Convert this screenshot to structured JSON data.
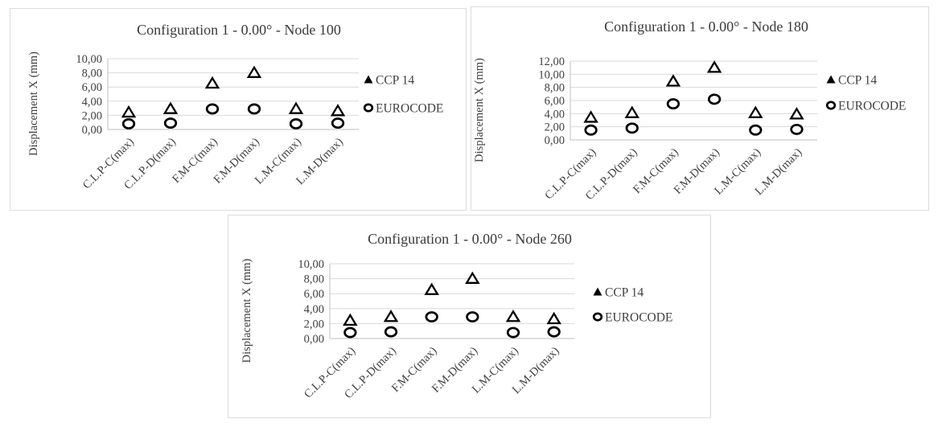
{
  "colors": {
    "background": "#ffffff",
    "panel_border": "#dcdcdc",
    "gridline": "#d9d9d9",
    "axis_line": "#bfbfbf",
    "text": "#404040",
    "marker": "#000000"
  },
  "legend": {
    "items": [
      {
        "label": "CCP 14",
        "marker": "triangle-icon"
      },
      {
        "label": "EUROCODE",
        "marker": "circle-icon"
      }
    ]
  },
  "chart_data": [
    {
      "type": "scatter",
      "title": "Configuration 1 - 0.00° - Node 100",
      "xlabel": "",
      "ylabel": "Displacement X (mm)",
      "ylim": [
        0,
        10
      ],
      "ystep": 2,
      "grid": true,
      "legend_position": "right",
      "yticks": [
        "0,00",
        "2,00",
        "4,00",
        "6,00",
        "8,00",
        "10,00"
      ],
      "categories": [
        "C.L.P-C(max)",
        "C.L.P-D(max)",
        "F.M-C(max)",
        "F.M-D(max)",
        "L.M-C(max)",
        "L.M-D(max)"
      ],
      "series": [
        {
          "name": "CCP 14",
          "marker": "triangle",
          "values": [
            2.4,
            2.9,
            6.5,
            8.0,
            2.9,
            2.6
          ]
        },
        {
          "name": "EUROCODE",
          "marker": "circle",
          "values": [
            0.8,
            0.9,
            2.9,
            2.9,
            0.8,
            0.9
          ]
        }
      ]
    },
    {
      "type": "scatter",
      "title": "Configuration 1 - 0.00° - Node 180",
      "xlabel": "",
      "ylabel": "Displacement X (mm)",
      "ylim": [
        0,
        12
      ],
      "ystep": 2,
      "grid": true,
      "legend_position": "right",
      "yticks": [
        "0,00",
        "2,00",
        "4,00",
        "6,00",
        "8,00",
        "10,00",
        "12,00"
      ],
      "categories": [
        "C.L.P-C(max)",
        "C.L.P-D(max)",
        "F.M-C(max)",
        "F.M-D(max)",
        "L.M-C(max)",
        "L.M-D(max)"
      ],
      "series": [
        {
          "name": "CCP 14",
          "marker": "triangle",
          "values": [
            3.4,
            4.1,
            8.9,
            11.0,
            4.1,
            3.9
          ]
        },
        {
          "name": "EUROCODE",
          "marker": "circle",
          "values": [
            1.5,
            1.8,
            5.5,
            6.2,
            1.5,
            1.6
          ]
        }
      ]
    },
    {
      "type": "scatter",
      "title": "Configuration 1 - 0.00° - Node 260",
      "xlabel": "",
      "ylabel": "Displacement X (mm)",
      "ylim": [
        0,
        10
      ],
      "ystep": 2,
      "grid": true,
      "legend_position": "right",
      "yticks": [
        "0,00",
        "2,00",
        "4,00",
        "6,00",
        "8,00",
        "10,00"
      ],
      "categories": [
        "C.L.P-C(max)",
        "C.L.P-D(max)",
        "F.M-C(max)",
        "F.M-D(max)",
        "L.M-C(max)",
        "L.M-D(max)"
      ],
      "series": [
        {
          "name": "CCP 14",
          "marker": "triangle",
          "values": [
            2.4,
            2.9,
            6.5,
            8.0,
            2.9,
            2.6
          ]
        },
        {
          "name": "EUROCODE",
          "marker": "circle",
          "values": [
            0.8,
            0.9,
            2.9,
            2.9,
            0.8,
            0.9
          ]
        }
      ]
    }
  ]
}
